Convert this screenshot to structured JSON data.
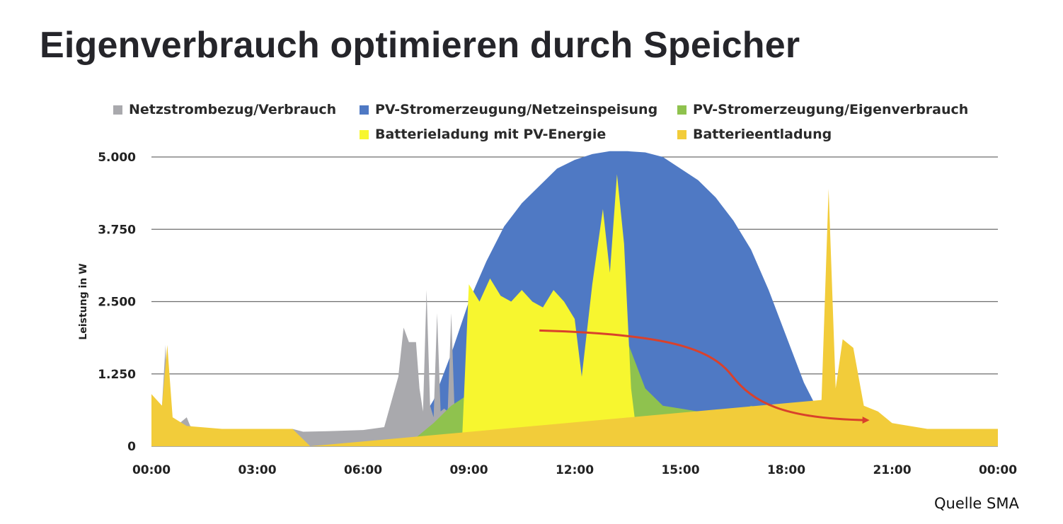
{
  "page": {
    "title": "Eigenverbrauch optimieren durch Speicher",
    "source": "Quelle SMA"
  },
  "chart_data": {
    "type": "area",
    "title": "",
    "xlabel": "",
    "ylabel": "Leistung in W",
    "x_unit": "hours",
    "xlim": [
      0,
      24
    ],
    "ylim": [
      0,
      5000
    ],
    "x_ticks": [
      "00:00",
      "03:00",
      "06:00",
      "09:00",
      "12:00",
      "15:00",
      "18:00",
      "21:00",
      "00:00"
    ],
    "y_ticks": [
      "0",
      "1.250",
      "2.500",
      "3.750",
      "5.000"
    ],
    "y_tick_values": [
      0,
      1250,
      2500,
      3750,
      5000
    ],
    "grid": true,
    "legend_position": "top",
    "series": [
      {
        "name": "Netzstrombezug/Verbrauch",
        "color": "#a9a9ad",
        "x": [
          0,
          0.1,
          0.3,
          0.4,
          0.45,
          0.55,
          0.7,
          1.0,
          1.1,
          1.3,
          2.0,
          3.0,
          4.0,
          4.3,
          5.0,
          6.0,
          6.6,
          7.0,
          7.15,
          7.3,
          7.5,
          7.6,
          7.7,
          7.8,
          7.9,
          8.0,
          8.1,
          8.2,
          8.3,
          8.4,
          8.5,
          8.6,
          8.7,
          8.8,
          8.9,
          9.0,
          9.5,
          10.0
        ],
        "y": [
          900,
          800,
          700,
          1750,
          600,
          400,
          350,
          500,
          350,
          300,
          300,
          300,
          300,
          250,
          260,
          280,
          330,
          1200,
          2050,
          1800,
          1800,
          1000,
          600,
          2700,
          700,
          500,
          2300,
          600,
          650,
          600,
          2300,
          500,
          400,
          300,
          150,
          100,
          50,
          0
        ]
      },
      {
        "name": "PV-Stromerzeugung/Netzeinspeisung",
        "color": "#4f79c4",
        "x": [
          7.0,
          7.5,
          8.0,
          8.5,
          9.0,
          9.5,
          10.0,
          10.5,
          11.0,
          11.5,
          12.0,
          12.5,
          13.0,
          13.5,
          14.0,
          14.5,
          15.0,
          15.5,
          16.0,
          16.5,
          17.0,
          17.5,
          18.0,
          18.5,
          19.0,
          19.5,
          20.0,
          20.5,
          21.0
        ],
        "y": [
          0,
          300,
          800,
          1600,
          2500,
          3200,
          3800,
          4200,
          4500,
          4800,
          4950,
          5050,
          5100,
          5100,
          5080,
          5000,
          4800,
          4600,
          4300,
          3900,
          3400,
          2700,
          1900,
          1100,
          500,
          200,
          50,
          0,
          0
        ]
      },
      {
        "name": "PV-Stromerzeugung/Eigenverbrauch",
        "color": "#8fc24e",
        "x": [
          7.0,
          7.5,
          8.0,
          8.5,
          9.0,
          9.5,
          10.0,
          10.5,
          11.0,
          11.5,
          12.0,
          12.5,
          13.0,
          13.5,
          14.0,
          14.5,
          15.0,
          15.5,
          16.0,
          16.5,
          17.0,
          17.5,
          18.0,
          18.5,
          19.0,
          19.5,
          20.0,
          20.5,
          21.0
        ],
        "y": [
          0,
          150,
          400,
          700,
          900,
          1100,
          800,
          700,
          600,
          650,
          700,
          900,
          1300,
          1800,
          1000,
          700,
          650,
          600,
          550,
          500,
          700,
          600,
          500,
          550,
          800,
          400,
          200,
          50,
          0
        ]
      },
      {
        "name": "Batterieladung mit PV-Energie",
        "color": "#f7f62f",
        "x": [
          8.8,
          9.0,
          9.3,
          9.6,
          9.9,
          10.2,
          10.5,
          10.8,
          11.1,
          11.4,
          11.7,
          12.0,
          12.2,
          12.5,
          12.8,
          13.0,
          13.2,
          13.4,
          13.6,
          13.8
        ],
        "y": [
          0,
          2800,
          2500,
          2900,
          2600,
          2500,
          2700,
          2500,
          2400,
          2700,
          2500,
          2200,
          1200,
          2800,
          4100,
          3000,
          4700,
          3500,
          1000,
          0
        ]
      },
      {
        "name": "Batterieentladung",
        "color": "#f2cc3a",
        "x": [
          0,
          0.3,
          0.45,
          0.6,
          1.0,
          2.0,
          3.0,
          4.0,
          4.5,
          19.0,
          19.2,
          19.4,
          19.6,
          19.9,
          20.2,
          20.6,
          21.0,
          22.0,
          23.0,
          24.0
        ],
        "y": [
          900,
          700,
          1750,
          500,
          350,
          300,
          300,
          300,
          0,
          800,
          4450,
          1000,
          1850,
          1700,
          700,
          600,
          400,
          300,
          300,
          300
        ]
      }
    ],
    "annotation": {
      "type": "arrow",
      "color": "#d9412b",
      "from": [
        11.0,
        2000
      ],
      "to": [
        20.3,
        450
      ]
    }
  }
}
